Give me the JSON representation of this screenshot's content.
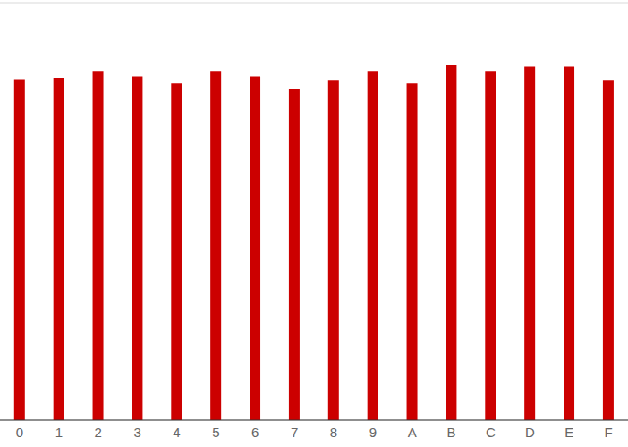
{
  "chart_data": {
    "type": "bar",
    "categories": [
      "0",
      "1",
      "2",
      "3",
      "4",
      "5",
      "6",
      "7",
      "8",
      "9",
      "A",
      "B",
      "C",
      "D",
      "E",
      "F"
    ],
    "values": [
      2.45,
      2.46,
      2.51,
      2.47,
      2.42,
      2.51,
      2.47,
      2.38,
      2.44,
      2.51,
      2.42,
      2.55,
      2.51,
      2.54,
      2.54,
      2.44
    ],
    "color": "#cc0000",
    "ylim": [
      0,
      3
    ],
    "yticks": [
      0,
      1,
      2,
      3
    ],
    "grid": true,
    "tick_labels": "x"
  }
}
